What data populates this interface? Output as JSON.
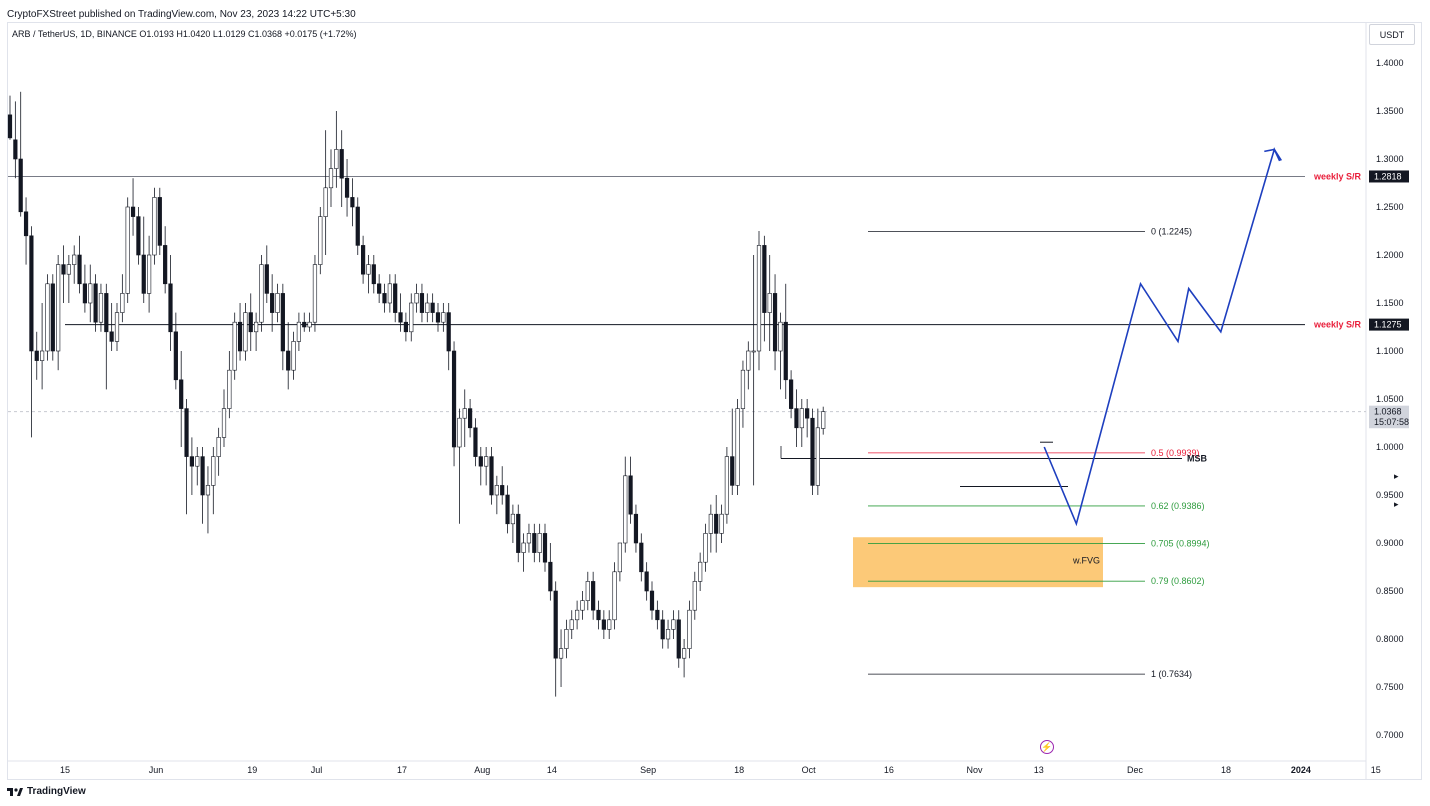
{
  "header": {
    "published": "CryptoFXStreet published on TradingView.com, Nov 23, 2023 14:22 UTC+5:30",
    "ohlc": "ARB / TetherUS, 1D, BINANCE   O1.0193  H1.0420  L1.0129  C1.0368  +0.0175 (+1.72%)",
    "currency": "USDT"
  },
  "footer": {
    "brand": "TradingView"
  },
  "chart_data": {
    "type": "candlestick",
    "symbol": "ARB / TetherUS",
    "timeframe": "1D",
    "exchange": "BINANCE",
    "ohlc": {
      "open": 1.0193,
      "high": 1.042,
      "low": 1.0129,
      "close": 1.0368,
      "change": 0.0175,
      "change_pct": "+1.72%"
    },
    "ylim": [
      0.68,
      1.42
    ],
    "y_ticks": [
      "1.4000",
      "1.3500",
      "1.3000",
      "1.2500",
      "1.2000",
      "1.1500",
      "1.1000",
      "1.0500",
      "1.0000",
      "0.9500",
      "0.9000",
      "0.8500",
      "0.8000",
      "0.7500",
      "0.7000"
    ],
    "x_ticks": [
      {
        "label": "15",
        "day": 0
      },
      {
        "label": "Jun",
        "day": 17
      },
      {
        "label": "19",
        "day": 35
      },
      {
        "label": "Jul",
        "day": 47
      },
      {
        "label": "17",
        "day": 63
      },
      {
        "label": "Aug",
        "day": 78
      },
      {
        "label": "14",
        "day": 91
      },
      {
        "label": "Sep",
        "day": 109
      },
      {
        "label": "18",
        "day": 126
      },
      {
        "label": "Oct",
        "day": 139
      },
      {
        "label": "16",
        "day": 154
      },
      {
        "label": "Nov",
        "day": 170
      },
      {
        "label": "13",
        "day": 182
      },
      {
        "label": "Dec",
        "day": 200
      },
      {
        "label": "18",
        "day": 217
      },
      {
        "label": "2024",
        "day": 231
      },
      {
        "label": "15",
        "day": 245
      }
    ],
    "grid": false,
    "price_labels": [
      {
        "label": "weekly S/R",
        "value": "1.2818",
        "price": 1.2818,
        "color": "#e91e3a",
        "bg": "#131722"
      },
      {
        "label": "weekly S/R",
        "value": "1.1275",
        "price": 1.1275,
        "color": "#e91e3a",
        "bg": "#131722"
      },
      {
        "label": "",
        "value": "1.0368",
        "price": 1.0368,
        "color": "#131722",
        "bg": "#d1d4dc"
      },
      {
        "label": "",
        "value": "15:07:58",
        "price": 1.0258,
        "color": "#131722",
        "bg": "#d1d4dc"
      }
    ],
    "fib_levels": [
      {
        "ratio": "0",
        "text": "0 (1.2245)",
        "price": 1.2245,
        "color": "#131722"
      },
      {
        "ratio": "0.5",
        "text": "0.5 (0.9939)",
        "price": 0.9939,
        "color": "#e91e3a"
      },
      {
        "ratio": "0.62",
        "text": "0.62 (0.9386)",
        "price": 0.9386,
        "color": "#2e9c3e"
      },
      {
        "ratio": "0.705",
        "text": "0.705 (0.8994)",
        "price": 0.8994,
        "color": "#2e9c3e"
      },
      {
        "ratio": "0.79",
        "text": "0.79 (0.8602)",
        "price": 0.8602,
        "color": "#2e9c3e"
      },
      {
        "ratio": "1",
        "text": "1 (0.7634)",
        "price": 0.7634,
        "color": "#131722"
      }
    ],
    "annotations": [
      {
        "text": "MSB",
        "price": 0.988
      },
      {
        "text": "w.FVG",
        "price": 0.882
      }
    ],
    "fvg_zone": {
      "top": 0.906,
      "bottom": 0.854,
      "color": "#fbbf60"
    },
    "forecast_path": [
      {
        "day": 195,
        "price": 1.0
      },
      {
        "day": 201,
        "price": 0.92
      },
      {
        "day": 213,
        "price": 1.17
      },
      {
        "day": 220,
        "price": 1.11
      },
      {
        "day": 222,
        "price": 1.165
      },
      {
        "day": 228,
        "price": 1.12
      },
      {
        "day": 238,
        "price": 1.31
      },
      {
        "day": 239,
        "price": 1.298
      }
    ],
    "candles": [
      [
        1.346,
        1.366,
        1.32,
        1.322
      ],
      [
        1.32,
        1.36,
        1.28,
        1.3
      ],
      [
        1.3,
        1.37,
        1.24,
        1.245
      ],
      [
        1.245,
        1.26,
        1.19,
        1.22
      ],
      [
        1.22,
        1.23,
        1.01,
        1.1
      ],
      [
        1.1,
        1.12,
        1.07,
        1.09
      ],
      [
        1.09,
        1.15,
        1.06,
        1.1
      ],
      [
        1.1,
        1.18,
        1.09,
        1.17
      ],
      [
        1.17,
        1.18,
        1.09,
        1.1
      ],
      [
        1.1,
        1.2,
        1.08,
        1.19
      ],
      [
        1.19,
        1.21,
        1.15,
        1.18
      ],
      [
        1.18,
        1.2,
        1.15,
        1.19
      ],
      [
        1.19,
        1.21,
        1.17,
        1.2
      ],
      [
        1.2,
        1.22,
        1.16,
        1.17
      ],
      [
        1.17,
        1.19,
        1.14,
        1.15
      ],
      [
        1.15,
        1.19,
        1.13,
        1.17
      ],
      [
        1.17,
        1.18,
        1.12,
        1.13
      ],
      [
        1.13,
        1.17,
        1.12,
        1.16
      ],
      [
        1.16,
        1.17,
        1.06,
        1.12
      ],
      [
        1.12,
        1.15,
        1.1,
        1.11
      ],
      [
        1.11,
        1.15,
        1.1,
        1.14
      ],
      [
        1.14,
        1.18,
        1.13,
        1.16
      ],
      [
        1.16,
        1.26,
        1.15,
        1.25
      ],
      [
        1.25,
        1.28,
        1.22,
        1.24
      ],
      [
        1.24,
        1.25,
        1.19,
        1.2
      ],
      [
        1.2,
        1.24,
        1.15,
        1.16
      ],
      [
        1.16,
        1.22,
        1.14,
        1.2
      ],
      [
        1.2,
        1.27,
        1.19,
        1.26
      ],
      [
        1.26,
        1.27,
        1.2,
        1.21
      ],
      [
        1.21,
        1.23,
        1.16,
        1.17
      ],
      [
        1.17,
        1.2,
        1.1,
        1.12
      ],
      [
        1.12,
        1.14,
        1.06,
        1.07
      ],
      [
        1.07,
        1.1,
        1.0,
        1.04
      ],
      [
        1.04,
        1.05,
        0.93,
        0.99
      ],
      [
        0.99,
        1.01,
        0.95,
        0.98
      ],
      [
        0.98,
        1.0,
        0.96,
        0.99
      ],
      [
        0.99,
        1.0,
        0.92,
        0.95
      ],
      [
        0.95,
        0.98,
        0.91,
        0.96
      ],
      [
        0.96,
        1.0,
        0.93,
        0.99
      ],
      [
        0.99,
        1.02,
        0.97,
        1.01
      ],
      [
        1.01,
        1.06,
        1.0,
        1.04
      ],
      [
        1.04,
        1.1,
        1.03,
        1.08
      ],
      [
        1.08,
        1.14,
        1.07,
        1.13
      ],
      [
        1.13,
        1.15,
        1.09,
        1.1
      ],
      [
        1.1,
        1.15,
        1.09,
        1.14
      ],
      [
        1.14,
        1.16,
        1.1,
        1.12
      ],
      [
        1.12,
        1.14,
        1.1,
        1.13
      ],
      [
        1.13,
        1.2,
        1.12,
        1.19
      ],
      [
        1.19,
        1.21,
        1.15,
        1.16
      ],
      [
        1.16,
        1.18,
        1.12,
        1.14
      ],
      [
        1.14,
        1.17,
        1.13,
        1.16
      ],
      [
        1.16,
        1.17,
        1.08,
        1.1
      ],
      [
        1.1,
        1.13,
        1.06,
        1.08
      ],
      [
        1.08,
        1.12,
        1.07,
        1.11
      ],
      [
        1.11,
        1.14,
        1.1,
        1.13
      ],
      [
        1.13,
        1.14,
        1.12,
        1.125
      ],
      [
        1.125,
        1.14,
        1.12,
        1.13
      ],
      [
        1.13,
        1.2,
        1.12,
        1.19
      ],
      [
        1.19,
        1.25,
        1.18,
        1.24
      ],
      [
        1.24,
        1.33,
        1.2,
        1.27
      ],
      [
        1.27,
        1.31,
        1.25,
        1.29
      ],
      [
        1.29,
        1.35,
        1.27,
        1.31
      ],
      [
        1.31,
        1.33,
        1.25,
        1.28
      ],
      [
        1.28,
        1.3,
        1.24,
        1.26
      ],
      [
        1.26,
        1.28,
        1.23,
        1.25
      ],
      [
        1.25,
        1.26,
        1.2,
        1.21
      ],
      [
        1.21,
        1.22,
        1.17,
        1.18
      ],
      [
        1.18,
        1.2,
        1.16,
        1.19
      ],
      [
        1.19,
        1.2,
        1.16,
        1.17
      ],
      [
        1.17,
        1.18,
        1.15,
        1.16
      ],
      [
        1.16,
        1.17,
        1.14,
        1.15
      ],
      [
        1.15,
        1.18,
        1.14,
        1.17
      ],
      [
        1.17,
        1.18,
        1.13,
        1.14
      ],
      [
        1.14,
        1.16,
        1.12,
        1.13
      ],
      [
        1.13,
        1.14,
        1.11,
        1.12
      ],
      [
        1.12,
        1.16,
        1.11,
        1.15
      ],
      [
        1.15,
        1.17,
        1.14,
        1.16
      ],
      [
        1.16,
        1.17,
        1.13,
        1.14
      ],
      [
        1.14,
        1.16,
        1.13,
        1.15
      ],
      [
        1.15,
        1.16,
        1.13,
        1.14
      ],
      [
        1.14,
        1.15,
        1.12,
        1.13
      ],
      [
        1.13,
        1.15,
        1.12,
        1.14
      ],
      [
        1.14,
        1.15,
        1.08,
        1.1
      ],
      [
        1.1,
        1.11,
        0.98,
        1.0
      ],
      [
        1.0,
        1.04,
        0.92,
        1.03
      ],
      [
        1.03,
        1.06,
        1.0,
        1.04
      ],
      [
        1.04,
        1.05,
        1.01,
        1.02
      ],
      [
        1.02,
        1.03,
        0.98,
        0.99
      ],
      [
        0.99,
        1.0,
        0.96,
        0.98
      ],
      [
        0.98,
        1.0,
        0.96,
        0.99
      ],
      [
        0.99,
        1.0,
        0.94,
        0.95
      ],
      [
        0.95,
        0.97,
        0.93,
        0.96
      ],
      [
        0.96,
        0.98,
        0.94,
        0.95
      ],
      [
        0.95,
        0.96,
        0.91,
        0.92
      ],
      [
        0.92,
        0.94,
        0.9,
        0.93
      ],
      [
        0.93,
        0.94,
        0.88,
        0.89
      ],
      [
        0.89,
        0.91,
        0.87,
        0.9
      ],
      [
        0.9,
        0.92,
        0.89,
        0.91
      ],
      [
        0.91,
        0.92,
        0.88,
        0.89
      ],
      [
        0.89,
        0.92,
        0.88,
        0.91
      ],
      [
        0.91,
        0.92,
        0.87,
        0.88
      ],
      [
        0.88,
        0.9,
        0.84,
        0.85
      ],
      [
        0.85,
        0.86,
        0.74,
        0.78
      ],
      [
        0.78,
        0.81,
        0.75,
        0.79
      ],
      [
        0.79,
        0.82,
        0.78,
        0.81
      ],
      [
        0.81,
        0.83,
        0.8,
        0.82
      ],
      [
        0.82,
        0.84,
        0.81,
        0.83
      ],
      [
        0.83,
        0.85,
        0.82,
        0.84
      ],
      [
        0.84,
        0.87,
        0.83,
        0.86
      ],
      [
        0.86,
        0.87,
        0.82,
        0.83
      ],
      [
        0.83,
        0.84,
        0.81,
        0.82
      ],
      [
        0.82,
        0.83,
        0.8,
        0.81
      ],
      [
        0.81,
        0.83,
        0.8,
        0.82
      ],
      [
        0.82,
        0.88,
        0.81,
        0.87
      ],
      [
        0.87,
        0.9,
        0.86,
        0.9
      ],
      [
        0.9,
        0.99,
        0.89,
        0.97
      ],
      [
        0.97,
        0.99,
        0.92,
        0.93
      ],
      [
        0.93,
        0.94,
        0.89,
        0.9
      ],
      [
        0.9,
        0.91,
        0.86,
        0.87
      ],
      [
        0.87,
        0.88,
        0.84,
        0.85
      ],
      [
        0.85,
        0.86,
        0.82,
        0.83
      ],
      [
        0.83,
        0.84,
        0.81,
        0.82
      ],
      [
        0.82,
        0.83,
        0.79,
        0.8
      ],
      [
        0.8,
        0.82,
        0.79,
        0.81
      ],
      [
        0.81,
        0.83,
        0.8,
        0.82
      ],
      [
        0.82,
        0.83,
        0.77,
        0.78
      ],
      [
        0.78,
        0.8,
        0.76,
        0.79
      ],
      [
        0.79,
        0.84,
        0.78,
        0.83
      ],
      [
        0.83,
        0.87,
        0.82,
        0.86
      ],
      [
        0.86,
        0.89,
        0.85,
        0.88
      ],
      [
        0.88,
        0.92,
        0.87,
        0.91
      ],
      [
        0.91,
        0.94,
        0.89,
        0.93
      ],
      [
        0.93,
        0.95,
        0.89,
        0.91
      ],
      [
        0.91,
        0.94,
        0.9,
        0.93
      ],
      [
        0.93,
        1.0,
        0.92,
        0.99
      ],
      [
        0.99,
        1.04,
        0.95,
        0.96
      ],
      [
        0.96,
        1.05,
        0.95,
        1.04
      ],
      [
        1.04,
        1.09,
        1.02,
        1.08
      ],
      [
        1.08,
        1.11,
        1.06,
        1.1
      ],
      [
        1.1,
        1.2,
        0.96,
        1.1
      ],
      [
        1.1,
        1.225,
        1.08,
        1.21
      ],
      [
        1.21,
        1.22,
        1.11,
        1.14
      ],
      [
        1.14,
        1.2,
        1.1,
        1.16
      ],
      [
        1.16,
        1.18,
        1.08,
        1.1
      ],
      [
        1.1,
        1.14,
        1.06,
        1.13
      ],
      [
        1.13,
        1.17,
        1.05,
        1.07
      ],
      [
        1.07,
        1.08,
        1.03,
        1.04
      ],
      [
        1.04,
        1.06,
        1.0,
        1.02
      ],
      [
        1.02,
        1.05,
        1.0,
        1.04
      ],
      [
        1.04,
        1.05,
        1.01,
        1.03
      ],
      [
        1.03,
        1.04,
        0.95,
        0.96
      ],
      [
        0.96,
        1.04,
        0.95,
        1.02
      ],
      [
        1.0193,
        1.042,
        1.0129,
        1.0368
      ]
    ]
  }
}
